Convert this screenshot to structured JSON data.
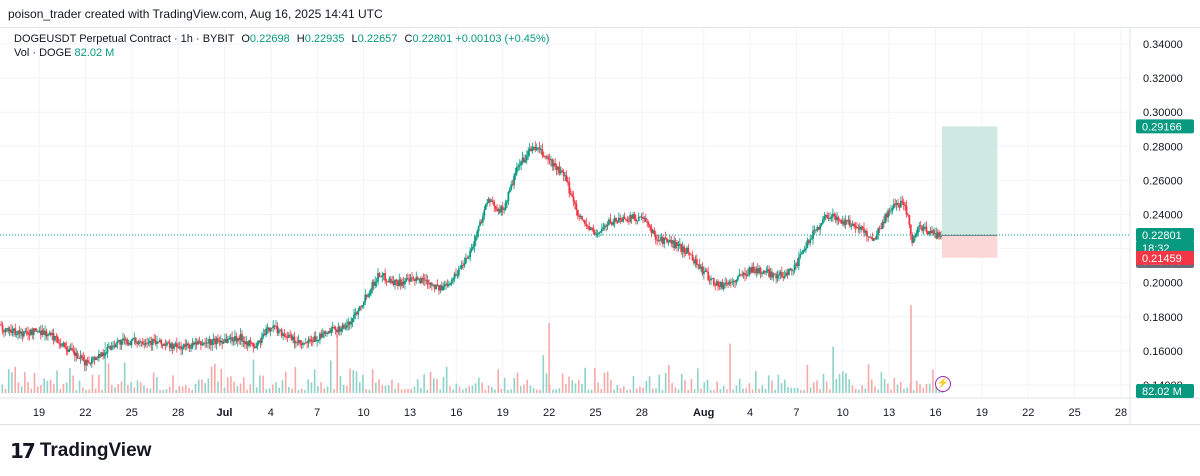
{
  "header": {
    "attribution": "poison_trader created with TradingView.com, Aug 16, 2025 14:41 UTC"
  },
  "legend": {
    "symbol_line": "DOGEUSDT Perpetual Contract · 1h · BYBIT",
    "open_label": "O",
    "open": "0.22698",
    "high_label": "H",
    "high": "0.22935",
    "low_label": "L",
    "low": "0.22657",
    "close_label": "C",
    "close": "0.22801",
    "change": "+0.00103 (+0.45%)",
    "vol_label": "Vol · DOGE",
    "vol_value": "82.02 M"
  },
  "footer": {
    "logo_text": "TradingView",
    "logo_mark": "17"
  },
  "icons": {
    "bolt": "lightning-icon",
    "logo": "tradingview-logo-icon"
  },
  "colors": {
    "up": "#089981",
    "down": "#f23645",
    "volume_up": "#8dd3c7",
    "volume_down": "#f7a9a7",
    "target_zone": "#cfe9e2",
    "stop_zone": "#fbd7d8",
    "lightning": "#9c27b0"
  },
  "chart_data": {
    "type": "candlestick",
    "timeframe": "1h",
    "y_axis": {
      "ticks": [
        0.14,
        0.16,
        0.18,
        0.2,
        0.22,
        0.24,
        0.26,
        0.28,
        0.3,
        0.32,
        0.34
      ],
      "tick_labels": [
        "0.14000",
        "0.16000",
        "0.18000",
        "0.20000",
        "0.22000",
        "0.24000",
        "0.26000",
        "0.28000",
        "0.30000",
        "0.32000",
        "0.34000"
      ],
      "ylim": [
        0.135,
        0.355
      ]
    },
    "x_axis": {
      "tick_labels": [
        "19",
        "22",
        "25",
        "28",
        "Jul",
        "4",
        "7",
        "10",
        "13",
        "16",
        "19",
        "22",
        "25",
        "28",
        "Aug",
        "4",
        "7",
        "10",
        "13",
        "16",
        "19",
        "22",
        "25",
        "28"
      ],
      "start": "2025-06-16",
      "end": "2025-08-29"
    },
    "price_path": [
      {
        "date": "2025-06-16",
        "price": 0.175
      },
      {
        "date": "2025-06-18",
        "price": 0.17
      },
      {
        "date": "2025-06-19",
        "price": 0.172
      },
      {
        "date": "2025-06-20",
        "price": 0.168
      },
      {
        "date": "2025-06-21",
        "price": 0.16
      },
      {
        "date": "2025-06-22",
        "price": 0.153
      },
      {
        "date": "2025-06-23",
        "price": 0.158
      },
      {
        "date": "2025-06-24",
        "price": 0.165
      },
      {
        "date": "2025-06-26",
        "price": 0.166
      },
      {
        "date": "2025-06-28",
        "price": 0.162
      },
      {
        "date": "2025-06-30",
        "price": 0.165
      },
      {
        "date": "2025-07-02",
        "price": 0.168
      },
      {
        "date": "2025-07-03",
        "price": 0.162
      },
      {
        "date": "2025-07-04",
        "price": 0.175
      },
      {
        "date": "2025-07-06",
        "price": 0.163
      },
      {
        "date": "2025-07-08",
        "price": 0.172
      },
      {
        "date": "2025-07-09",
        "price": 0.175
      },
      {
        "date": "2025-07-10",
        "price": 0.19
      },
      {
        "date": "2025-07-11",
        "price": 0.205
      },
      {
        "date": "2025-07-12",
        "price": 0.2
      },
      {
        "date": "2025-07-14",
        "price": 0.202
      },
      {
        "date": "2025-07-15",
        "price": 0.196
      },
      {
        "date": "2025-07-16",
        "price": 0.205
      },
      {
        "date": "2025-07-17",
        "price": 0.22
      },
      {
        "date": "2025-07-18",
        "price": 0.248
      },
      {
        "date": "2025-07-19",
        "price": 0.242
      },
      {
        "date": "2025-07-20",
        "price": 0.268
      },
      {
        "date": "2025-07-21",
        "price": 0.28
      },
      {
        "date": "2025-07-22",
        "price": 0.272
      },
      {
        "date": "2025-07-23",
        "price": 0.262
      },
      {
        "date": "2025-07-24",
        "price": 0.238
      },
      {
        "date": "2025-07-25",
        "price": 0.228
      },
      {
        "date": "2025-07-26",
        "price": 0.236
      },
      {
        "date": "2025-07-27",
        "price": 0.238
      },
      {
        "date": "2025-07-28",
        "price": 0.238
      },
      {
        "date": "2025-07-29",
        "price": 0.226
      },
      {
        "date": "2025-07-30",
        "price": 0.223
      },
      {
        "date": "2025-07-31",
        "price": 0.218
      },
      {
        "date": "2025-08-01",
        "price": 0.206
      },
      {
        "date": "2025-08-02",
        "price": 0.198
      },
      {
        "date": "2025-08-03",
        "price": 0.201
      },
      {
        "date": "2025-08-04",
        "price": 0.208
      },
      {
        "date": "2025-08-05",
        "price": 0.206
      },
      {
        "date": "2025-08-06",
        "price": 0.204
      },
      {
        "date": "2025-08-07",
        "price": 0.21
      },
      {
        "date": "2025-08-08",
        "price": 0.228
      },
      {
        "date": "2025-08-09",
        "price": 0.24
      },
      {
        "date": "2025-08-10",
        "price": 0.236
      },
      {
        "date": "2025-08-11",
        "price": 0.233
      },
      {
        "date": "2025-08-12",
        "price": 0.225
      },
      {
        "date": "2025-08-13",
        "price": 0.243
      },
      {
        "date": "2025-08-14",
        "price": 0.248
      },
      {
        "date": "2025-08-14",
        "price": 0.225
      },
      {
        "date": "2025-08-15",
        "price": 0.233
      },
      {
        "date": "2025-08-16",
        "price": 0.228
      }
    ],
    "volume_spikes": [
      {
        "date": "2025-07-22",
        "level": "high"
      },
      {
        "date": "2025-08-14",
        "level": "highest"
      }
    ],
    "last_price": 0.22801,
    "countdown": "18:32",
    "position_tool": {
      "entry": 0.22778,
      "target": 0.29166,
      "stop": 0.21459,
      "start": "2025-08-16",
      "end": "2025-08-20"
    },
    "price_labels": [
      {
        "value": "0.29166",
        "color": "#089981"
      },
      {
        "value": "0.22801",
        "color": "#089981"
      },
      {
        "value": "18:32",
        "color": "#089981"
      },
      {
        "value": "0.22778",
        "color": "#6a6d78"
      },
      {
        "value": "0.21459",
        "color": "#f23645"
      },
      {
        "value": "82.02 M",
        "color": "#089981"
      }
    ]
  }
}
